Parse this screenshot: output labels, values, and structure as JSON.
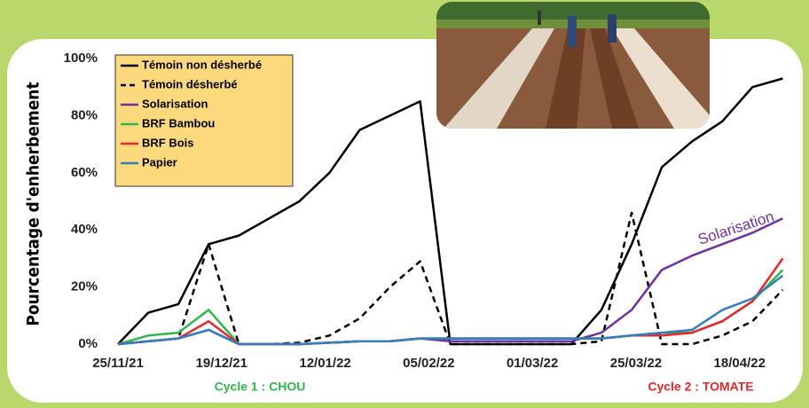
{
  "chart_data": {
    "type": "line",
    "y_label": "Pourcentage d'enherbement",
    "x": [
      "2021-11-25",
      "2021-12-02",
      "2021-12-09",
      "2021-12-16",
      "2021-12-23",
      "2021-12-30",
      "2022-01-06",
      "2022-01-13",
      "2022-01-20",
      "2022-01-27",
      "2022-02-03",
      "2022-02-10",
      "2022-02-17",
      "2022-02-24",
      "2022-03-03",
      "2022-03-10",
      "2022-03-17",
      "2022-03-24",
      "2022-03-31",
      "2022-04-07",
      "2022-04-14",
      "2022-04-21",
      "2022-04-28"
    ],
    "xlim": [
      "2021-11-25",
      "2022-05-01"
    ],
    "xticks": [
      {
        "value": "2021-11-25",
        "label": "25/11/21"
      },
      {
        "value": "2021-12-19",
        "label": "19/12/21"
      },
      {
        "value": "2022-01-12",
        "label": "12/01/22"
      },
      {
        "value": "2022-02-05",
        "label": "05/02/22"
      },
      {
        "value": "2022-03-01",
        "label": "01/03/22"
      },
      {
        "value": "2022-03-25",
        "label": "25/03/22"
      },
      {
        "value": "2022-04-18",
        "label": "18/04/22"
      }
    ],
    "ylim": [
      0,
      100
    ],
    "yticks": [
      {
        "value": 0,
        "label": "0%"
      },
      {
        "value": 20,
        "label": "20%"
      },
      {
        "value": 40,
        "label": "40%"
      },
      {
        "value": 60,
        "label": "60%"
      },
      {
        "value": 80,
        "label": "80%"
      },
      {
        "value": 100,
        "label": "100%"
      }
    ],
    "grid": false,
    "legend": "top-left",
    "series": [
      {
        "name": "Témoin non désherbé",
        "color": "#000000",
        "dashed": false,
        "values": [
          0,
          11,
          14,
          35,
          38,
          44,
          50,
          60,
          75,
          80,
          85,
          0,
          0,
          0,
          0,
          0,
          12,
          35,
          62,
          71,
          78,
          90,
          93
        ]
      },
      {
        "name": "Témoin désherbé",
        "color": "#000000",
        "dashed": true,
        "values": [
          0,
          1,
          2,
          35,
          0,
          0,
          0.5,
          3,
          9,
          20,
          29,
          0,
          0,
          0,
          0,
          0,
          1,
          46,
          0,
          0,
          3,
          8,
          19
        ]
      },
      {
        "name": "Solarisation",
        "color": "#7030a0",
        "dashed": false,
        "values": [
          0,
          1,
          2,
          5,
          0,
          0,
          0,
          0.5,
          1,
          1,
          2,
          1,
          1,
          1,
          1,
          1,
          4,
          12,
          26,
          31,
          35,
          39,
          44
        ]
      },
      {
        "name": "BRF Bambou",
        "color": "#2eb84b",
        "dashed": false,
        "values": [
          0,
          3,
          4,
          12,
          0,
          0,
          0,
          0.5,
          1,
          1,
          2,
          2,
          2,
          2,
          2,
          2,
          2,
          3,
          4,
          4,
          8,
          15,
          26
        ]
      },
      {
        "name": "BRF Bois",
        "color": "#e8262b",
        "dashed": false,
        "values": [
          0,
          1,
          2,
          8,
          0,
          0,
          0,
          0.5,
          1,
          1,
          2,
          2,
          2,
          2,
          2,
          2,
          2,
          3,
          3,
          4,
          8,
          15,
          30
        ]
      },
      {
        "name": "Papier",
        "color": "#2f7fc1",
        "dashed": false,
        "values": [
          0,
          1,
          2,
          5,
          0,
          0,
          0,
          0.5,
          1,
          1,
          2,
          2,
          2,
          2,
          2,
          2,
          2,
          3,
          4,
          5,
          12,
          16,
          24
        ]
      }
    ],
    "annotations": [
      {
        "text": "Solarisation",
        "color": "#7030a0"
      },
      {
        "text": "Cycle 1 : CHOU",
        "color": "#2eb84b"
      },
      {
        "text": "Cycle 2 : TOMATE",
        "color": "#e8262b"
      }
    ]
  }
}
